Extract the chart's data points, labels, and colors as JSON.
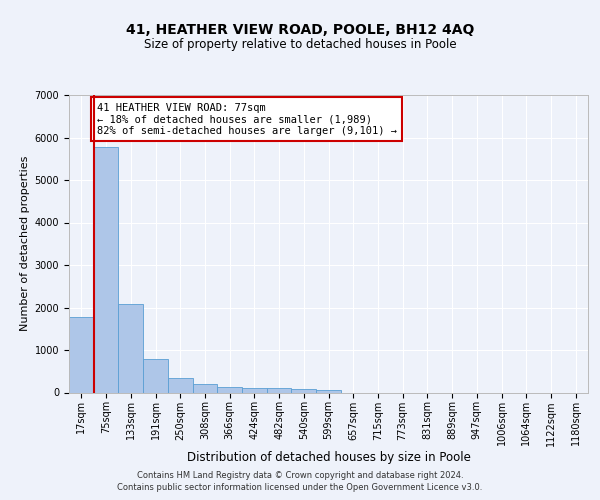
{
  "title1": "41, HEATHER VIEW ROAD, POOLE, BH12 4AQ",
  "title2": "Size of property relative to detached houses in Poole",
  "xlabel": "Distribution of detached houses by size in Poole",
  "ylabel": "Number of detached properties",
  "bin_labels": [
    "17sqm",
    "75sqm",
    "133sqm",
    "191sqm",
    "250sqm",
    "308sqm",
    "366sqm",
    "424sqm",
    "482sqm",
    "540sqm",
    "599sqm",
    "657sqm",
    "715sqm",
    "773sqm",
    "831sqm",
    "889sqm",
    "947sqm",
    "1006sqm",
    "1064sqm",
    "1122sqm",
    "1180sqm"
  ],
  "bar_values": [
    1780,
    5770,
    2080,
    800,
    340,
    190,
    120,
    110,
    100,
    85,
    60,
    0,
    0,
    0,
    0,
    0,
    0,
    0,
    0,
    0,
    0
  ],
  "bar_color": "#aec6e8",
  "bar_edge_color": "#5a9fd4",
  "annotation_text": "41 HEATHER VIEW ROAD: 77sqm\n← 18% of detached houses are smaller (1,989)\n82% of semi-detached houses are larger (9,101) →",
  "annotation_box_color": "#ffffff",
  "annotation_box_edge_color": "#cc0000",
  "vline_color": "#cc0000",
  "ylim": [
    0,
    7000
  ],
  "yticks": [
    0,
    1000,
    2000,
    3000,
    4000,
    5000,
    6000,
    7000
  ],
  "footer1": "Contains HM Land Registry data © Crown copyright and database right 2024.",
  "footer2": "Contains public sector information licensed under the Open Government Licence v3.0.",
  "background_color": "#eef2fa",
  "plot_background_color": "#eef2fa",
  "grid_color": "#ffffff",
  "title1_fontsize": 10,
  "title2_fontsize": 8.5,
  "ylabel_fontsize": 8,
  "xlabel_fontsize": 8.5,
  "footer_fontsize": 6,
  "tick_fontsize": 7,
  "annot_fontsize": 7.5
}
